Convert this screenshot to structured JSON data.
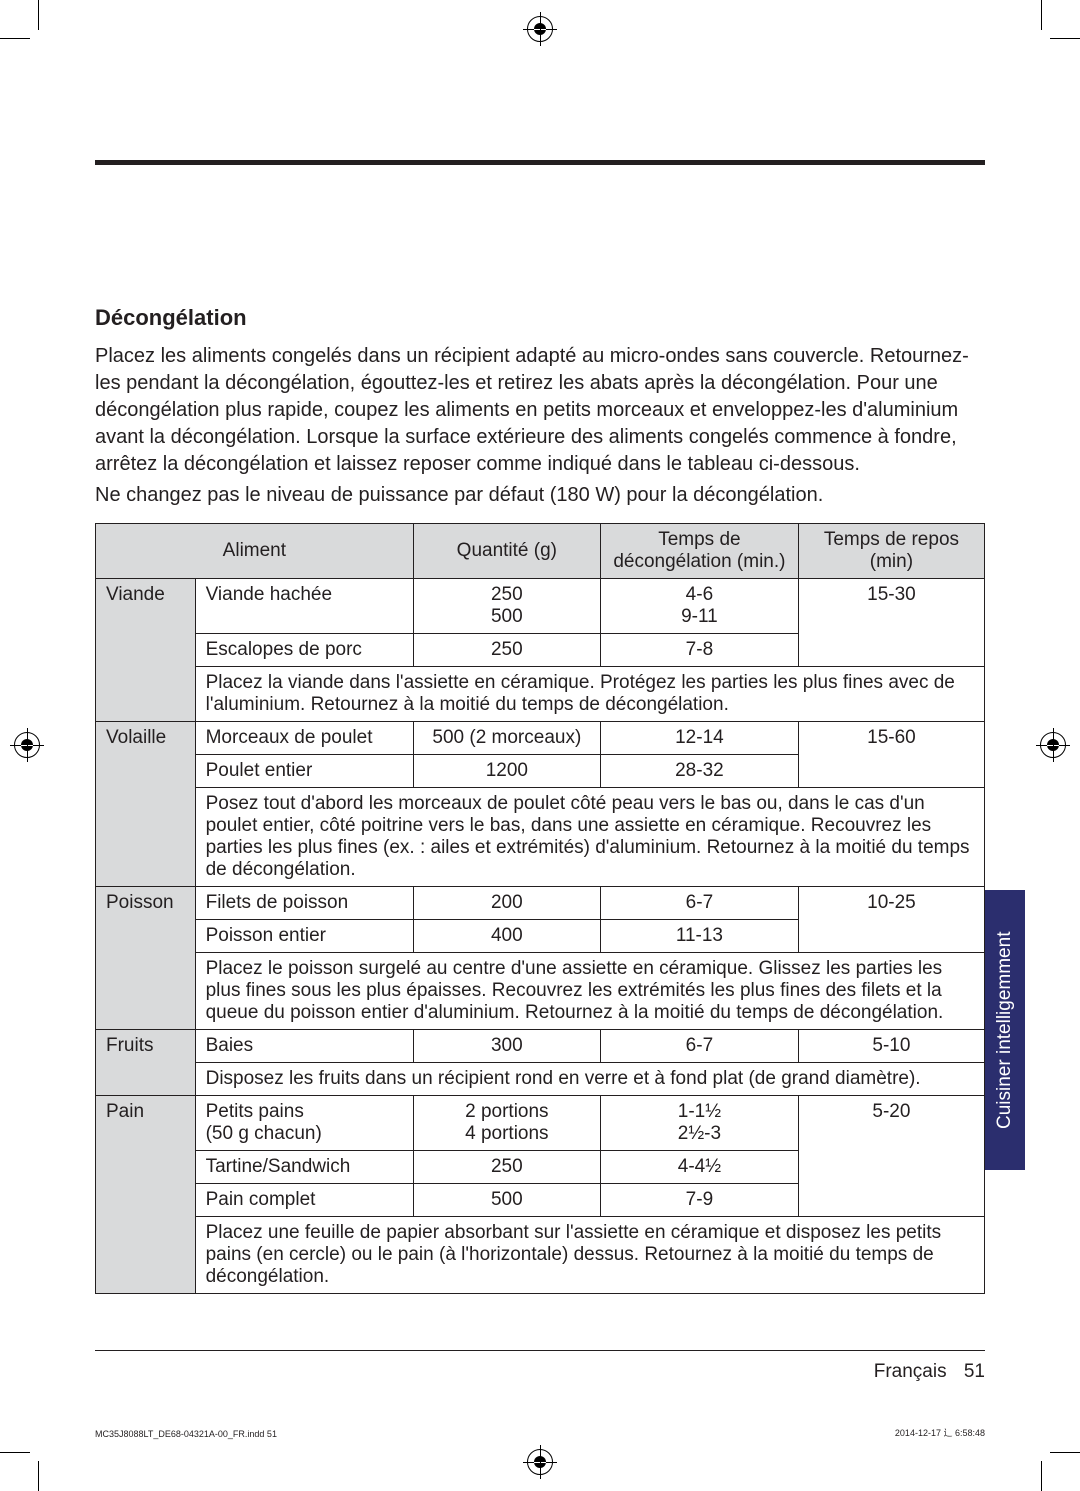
{
  "section_title": "Décongélation",
  "intro_paragraph": "Placez les aliments congelés dans un récipient adapté au micro-ondes sans couvercle. Retournez-les pendant la décongélation, égouttez-les et retirez les abats après la décongélation. Pour une décongélation plus rapide, coupez les aliments en petits morceaux et enveloppez-les d'aluminium avant la décongélation. Lorsque la surface extérieure des aliments congelés commence à fondre, arrêtez la décongélation et laissez reposer comme indiqué dans le tableau ci-dessous.",
  "power_note": "Ne changez pas le niveau de puissance par défaut (180 W) pour la décongélation.",
  "table": {
    "columns": [
      "Aliment",
      "Quantité (g)",
      "Temps de décongélation (min.)",
      "Temps de repos (min)"
    ],
    "col_widths": [
      "320px",
      "190px",
      "200px",
      "190px"
    ],
    "header_bg": "#d9dadb",
    "border_color": "#231f20",
    "groups": [
      {
        "category": "Viande",
        "rows": [
          {
            "name": "Viande hachée",
            "qty": "250\n500",
            "time": "4-6\n9-11",
            "rest": "15-30"
          },
          {
            "name": "Escalopes de porc",
            "qty": "250",
            "time": "7-8",
            "rest": ""
          }
        ],
        "note": "Placez la viande dans l'assiette en céramique. Protégez les parties les plus fines avec de l'aluminium. Retournez à la moitié du temps de décongélation."
      },
      {
        "category": "Volaille",
        "rows": [
          {
            "name": "Morceaux de poulet",
            "qty": "500 (2 morceaux)",
            "time": "12-14",
            "rest": "15-60"
          },
          {
            "name": "Poulet entier",
            "qty": "1200",
            "time": "28-32",
            "rest": ""
          }
        ],
        "note": "Posez tout d'abord les morceaux de poulet côté peau vers le bas ou, dans le cas d'un poulet entier, côté poitrine vers le bas, dans une assiette en céramique. Recouvrez les parties les plus fines (ex. : ailes et extrémités) d'aluminium. Retournez à la moitié du temps de décongélation."
      },
      {
        "category": "Poisson",
        "rows": [
          {
            "name": "Filets de poisson",
            "qty": "200",
            "time": "6-7",
            "rest": "10-25"
          },
          {
            "name": "Poisson entier",
            "qty": "400",
            "time": "11-13",
            "rest": ""
          }
        ],
        "note": "Placez le poisson surgelé au centre d'une assiette en céramique. Glissez les parties les plus fines sous les plus épaisses. Recouvrez les extrémités les plus fines des filets et la queue du poisson entier d'aluminium. Retournez à la moitié du temps de décongélation."
      },
      {
        "category": "Fruits",
        "rows": [
          {
            "name": "Baies",
            "qty": "300",
            "time": "6-7",
            "rest": "5-10"
          }
        ],
        "note": "Disposez les fruits dans un récipient rond en verre et à fond plat (de grand diamètre)."
      },
      {
        "category": "Pain",
        "rows": [
          {
            "name": "Petits pains\n(50 g chacun)",
            "qty": "2 portions\n4 portions",
            "time": "1-1½\n2½-3",
            "rest": "5-20"
          },
          {
            "name": "Tartine/Sandwich",
            "qty": "250",
            "time": "4-4½",
            "rest": ""
          },
          {
            "name": "Pain complet",
            "qty": "500",
            "time": "7-9",
            "rest": ""
          }
        ],
        "note": "Placez une feuille de papier absorbant sur l'assiette en céramique et disposez les petits pains (en cercle) ou le pain (à l'horizontale) dessus. Retournez à la moitié du temps de décongélation."
      }
    ]
  },
  "side_tab": "Cuisiner intelligemment",
  "footer_lang": "Français",
  "footer_page": "51",
  "print_left": "MC35J8088LT_DE68-04321A-00_FR.indd   51",
  "print_right": "2014-12-17   ⻌ 6:58:48",
  "colors": {
    "text": "#231f20",
    "header_bg": "#d9dadb",
    "tab_bg": "#2b2e6e",
    "tab_text": "#ffffff"
  }
}
